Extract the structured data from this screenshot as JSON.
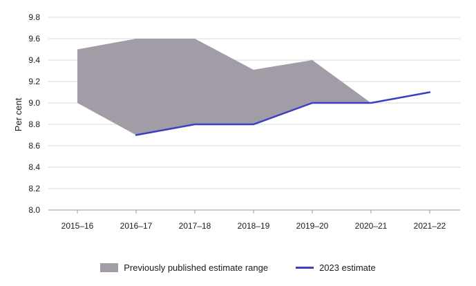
{
  "chart_data": {
    "type": "area",
    "title": "",
    "xlabel": "",
    "ylabel": "Per cent",
    "ylim": [
      8.0,
      9.8
    ],
    "yticks": [
      "8.0",
      "8.2",
      "8.4",
      "8.6",
      "8.8",
      "9.0",
      "9.2",
      "9.4",
      "9.6",
      "9.8"
    ],
    "categories": [
      "2015–16",
      "2016–17",
      "2017–18",
      "2018–19",
      "2019–20",
      "2020–21",
      "2021–22"
    ],
    "grid": "horizontal",
    "legend_position": "bottom",
    "series": [
      {
        "name": "Previously published estimate range",
        "kind": "range",
        "color": "#a19ca5",
        "upper": [
          9.5,
          9.6,
          9.6,
          9.31,
          9.4,
          9.0,
          null
        ],
        "lower": [
          9.0,
          8.7,
          8.8,
          8.8,
          9.0,
          9.0,
          null
        ]
      },
      {
        "name": "2023 estimate",
        "kind": "line",
        "color": "#3b3fc4",
        "values": [
          null,
          8.7,
          8.8,
          8.8,
          9.0,
          9.0,
          9.1
        ]
      }
    ]
  }
}
